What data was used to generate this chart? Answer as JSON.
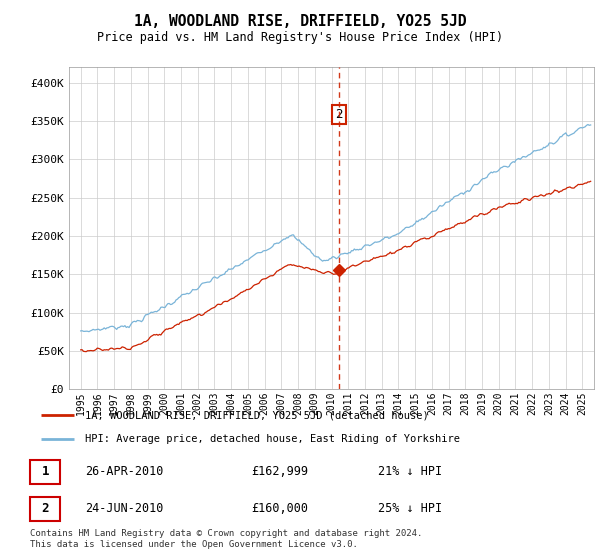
{
  "title": "1A, WOODLAND RISE, DRIFFIELD, YO25 5JD",
  "subtitle": "Price paid vs. HM Land Registry's House Price Index (HPI)",
  "ylabel_ticks": [
    "£0",
    "£50K",
    "£100K",
    "£150K",
    "£200K",
    "£250K",
    "£300K",
    "£350K",
    "£400K"
  ],
  "ylim": [
    0,
    420000
  ],
  "hpi_color": "#7ab4d8",
  "price_color": "#cc2200",
  "vline_color": "#cc2200",
  "legend_label_red": "1A, WOODLAND RISE, DRIFFIELD, YO25 5JD (detached house)",
  "legend_label_blue": "HPI: Average price, detached house, East Riding of Yorkshire",
  "point1_label": "1",
  "point1_date": "26-APR-2010",
  "point1_price": "£162,999",
  "point1_hpi": "21% ↓ HPI",
  "point2_label": "2",
  "point2_date": "24-JUN-2010",
  "point2_price": "£160,000",
  "point2_hpi": "25% ↓ HPI",
  "footnote": "Contains HM Land Registry data © Crown copyright and database right 2024.\nThis data is licensed under the Open Government Licence v3.0.",
  "vline_x": 2010.47
}
